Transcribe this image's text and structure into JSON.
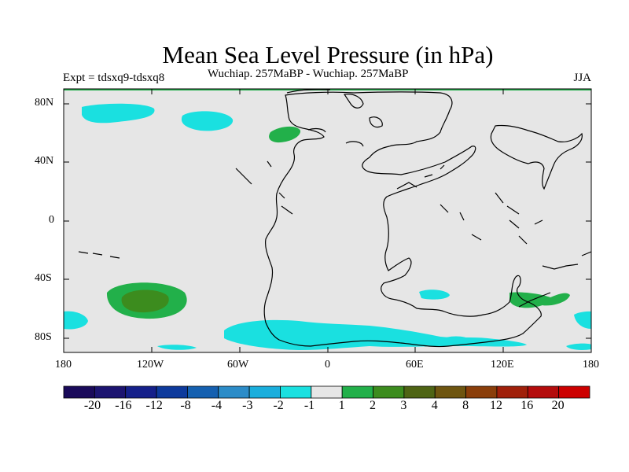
{
  "title": "Mean Sea Level Pressure (in hPa)",
  "subtitle_left": "Expt = tdsxq9-tdsxq8",
  "subtitle_center": "Wuchiap. 257MaBP - Wuchiap. 257MaBP",
  "subtitle_right": "JJA",
  "y_ticks": [
    "80N",
    "40N",
    "0",
    "40S",
    "80S"
  ],
  "x_ticks": [
    "180",
    "120W",
    "60W",
    "0",
    "60E",
    "120E",
    "180"
  ],
  "colorbar": {
    "labels": [
      "-20",
      "-16",
      "-12",
      "-8",
      "-4",
      "-3",
      "-2",
      "-1",
      "1",
      "2",
      "3",
      "4",
      "8",
      "12",
      "16",
      "20"
    ],
    "colors": [
      "#1a0a5a",
      "#1c1470",
      "#15208a",
      "#0d3a9c",
      "#1560b0",
      "#2c8cc8",
      "#1aaedc",
      "#1ae0e0",
      "#e6e6e6",
      "#22b04a",
      "#3c8c1e",
      "#4e6414",
      "#6e5510",
      "#8a3e0a",
      "#a0200a",
      "#b40c0c",
      "#cc0000"
    ]
  },
  "colors": {
    "neg1": "#1ae0e0",
    "pos1": "#22b04a",
    "pos2": "#3c8c1e",
    "ocean": "#e6e6e6"
  }
}
